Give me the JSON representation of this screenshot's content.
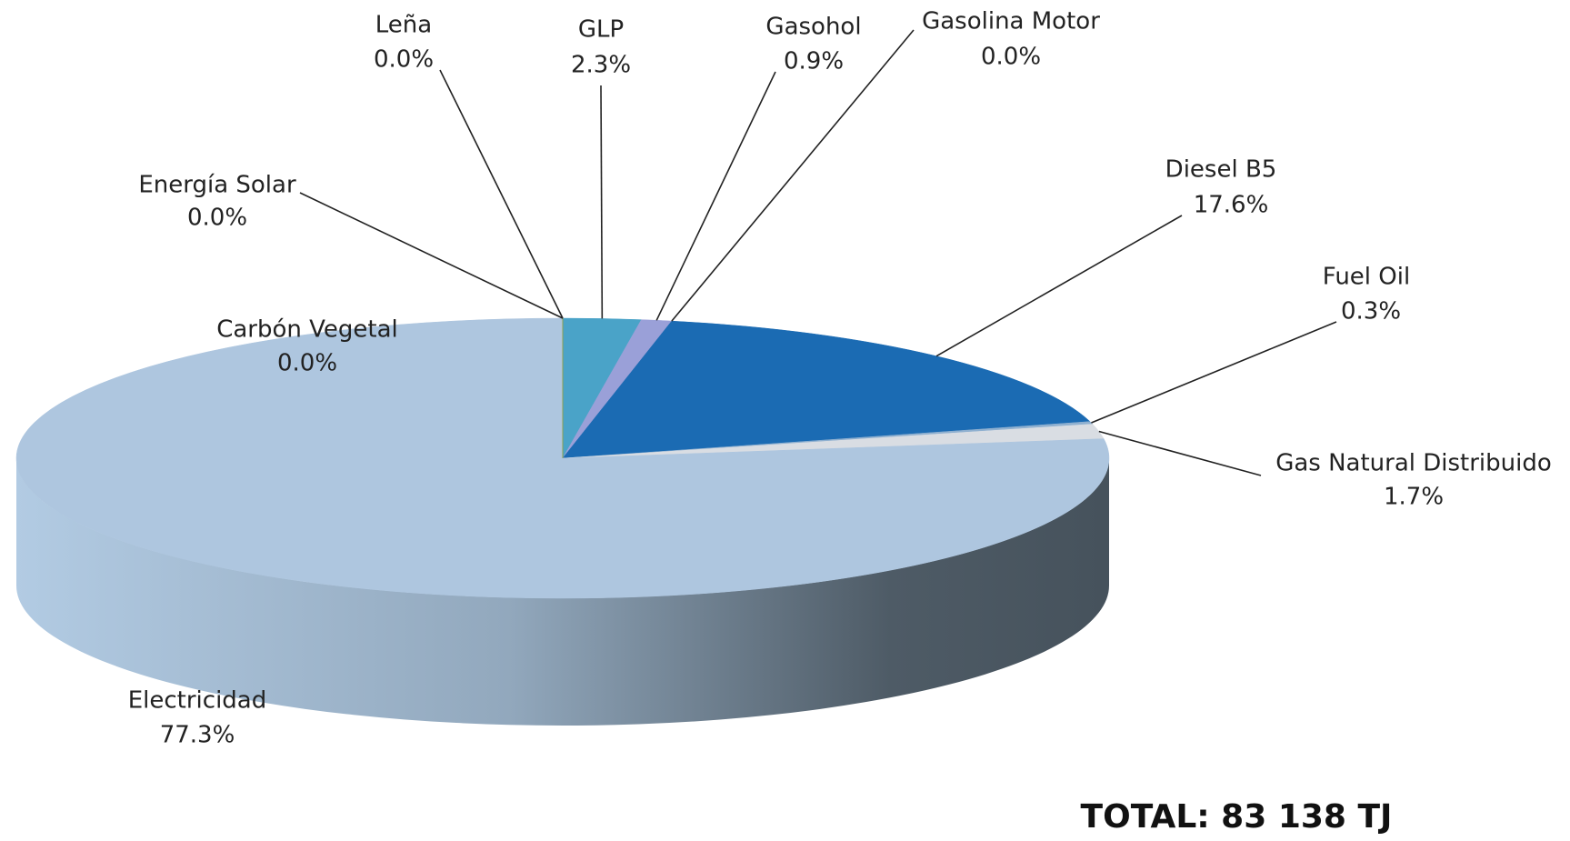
{
  "chart_data": {
    "type": "pie",
    "categories": [
      "GLP",
      "Gasohol",
      "Gasolina Motor",
      "Diesel B5",
      "Fuel Oil",
      "Gas Natural Distribuido",
      "Electricidad",
      "Carbón Vegetal",
      "Energía Solar",
      "Leña"
    ],
    "values": [
      2.3,
      0.9,
      0.0,
      17.6,
      0.3,
      1.7,
      77.3,
      0.0,
      0.0,
      0.0
    ],
    "value_labels": [
      "2.3%",
      "0.9%",
      "0.0%",
      "17.6%",
      "0.3%",
      "1.7%",
      "77.3%",
      "0.0%",
      "0.0%",
      "0.0%"
    ],
    "colors": [
      "#4aa3c8",
      "#9aa0d8",
      "#6f86c4",
      "#1b6bb3",
      "#8fb0d0",
      "#d9dde3",
      "#aec6df",
      "#8a7a5a",
      "#e0c040",
      "#7a9a50"
    ],
    "annotation": "TOTAL: 83 138 TJ"
  }
}
